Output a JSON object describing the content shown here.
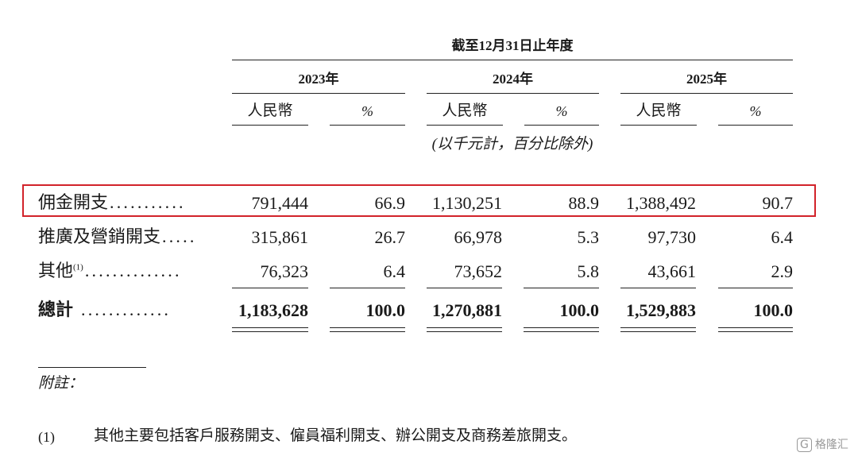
{
  "header": {
    "period": "截至12月31日止年度",
    "years": [
      "2023年",
      "2024年",
      "2025年"
    ],
    "columns": [
      "人民幣",
      "%"
    ],
    "unit_note": "(以千元計，百分比除外)"
  },
  "table": {
    "rows": [
      {
        "label": "佣金開支",
        "leader": "...........",
        "cells": [
          "791,444",
          "66.9",
          "1,130,251",
          "88.9",
          "1,388,492",
          "90.7"
        ]
      },
      {
        "label": "推廣及營銷開支",
        "leader": ".....",
        "cells": [
          "315,861",
          "26.7",
          "66,978",
          "5.3",
          "97,730",
          "6.4"
        ]
      },
      {
        "label": "其他",
        "ref": "(1)",
        "leader": "..............",
        "cells": [
          "76,323",
          "6.4",
          "73,652",
          "5.8",
          "43,661",
          "2.9"
        ]
      },
      {
        "label": "總計",
        "leader": ".............",
        "cells": [
          "1,183,628",
          "100.0",
          "1,270,881",
          "100.0",
          "1,529,883",
          "100.0"
        ]
      }
    ]
  },
  "notes": {
    "title": "附註：",
    "items": [
      {
        "marker": "(1)",
        "text": "其他主要包括客戶服務開支、僱員福利開支、辦公開支及商務差旅開支。"
      }
    ]
  },
  "watermark": "格隆汇"
}
